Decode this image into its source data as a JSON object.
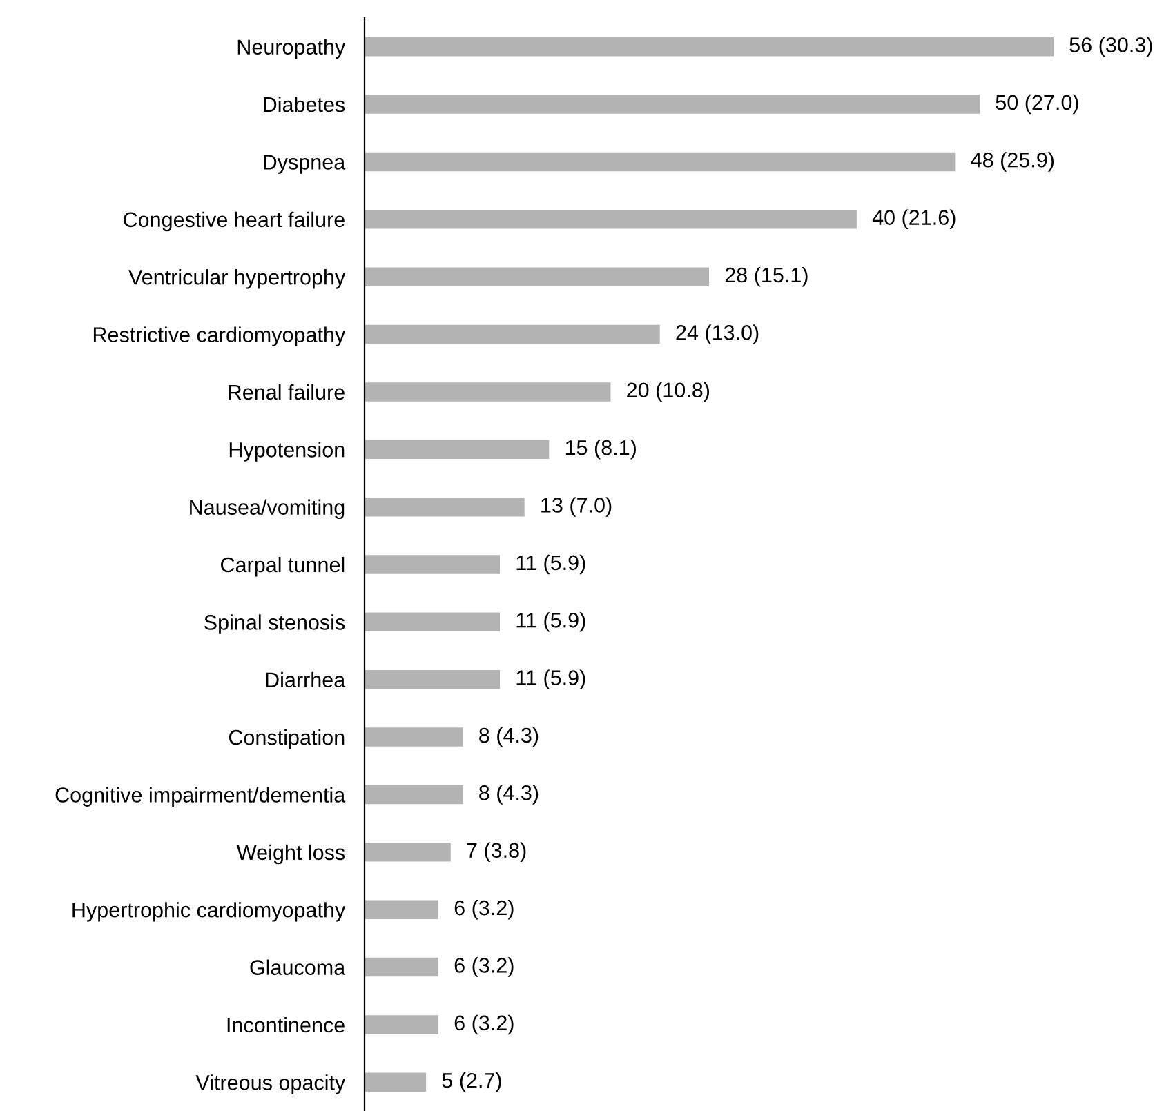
{
  "chart_data": {
    "type": "bar",
    "orientation": "horizontal",
    "tick_labels": "y",
    "grid": false,
    "legend": false,
    "categories": [
      "Neuropathy",
      "Diabetes",
      "Dyspnea",
      "Congestive heart failure",
      "Ventricular hypertrophy",
      "Restrictive cardiomyopathy",
      "Renal failure",
      "Hypotension",
      "Nausea/vomiting",
      "Carpal tunnel",
      "Spinal stenosis",
      "Diarrhea",
      "Constipation",
      "Cognitive impairment/dementia",
      "Weight loss",
      "Hypertrophic cardiomyopathy",
      "Glaucoma",
      "Incontinence",
      "Vitreous opacity"
    ],
    "values": [
      56,
      50,
      48,
      40,
      28,
      24,
      20,
      15,
      13,
      11,
      11,
      11,
      8,
      8,
      7,
      6,
      6,
      6,
      5
    ],
    "value_labels": [
      "56 (30.3)",
      "50 (27.0)",
      "48 (25.9)",
      "40 (21.6)",
      "28 (15.1)",
      "24 (13.0)",
      "20 (10.8)",
      "15 (8.1)",
      "13 (7.0)",
      "11 (5.9)",
      "11 (5.9)",
      "11 (5.9)",
      "8 (4.3)",
      "8 (4.3)",
      "7 (3.8)",
      "6 (3.2)",
      "6 (3.2)",
      "6 (3.2)",
      "5 (2.7)"
    ],
    "color": "#b3b3b3"
  }
}
